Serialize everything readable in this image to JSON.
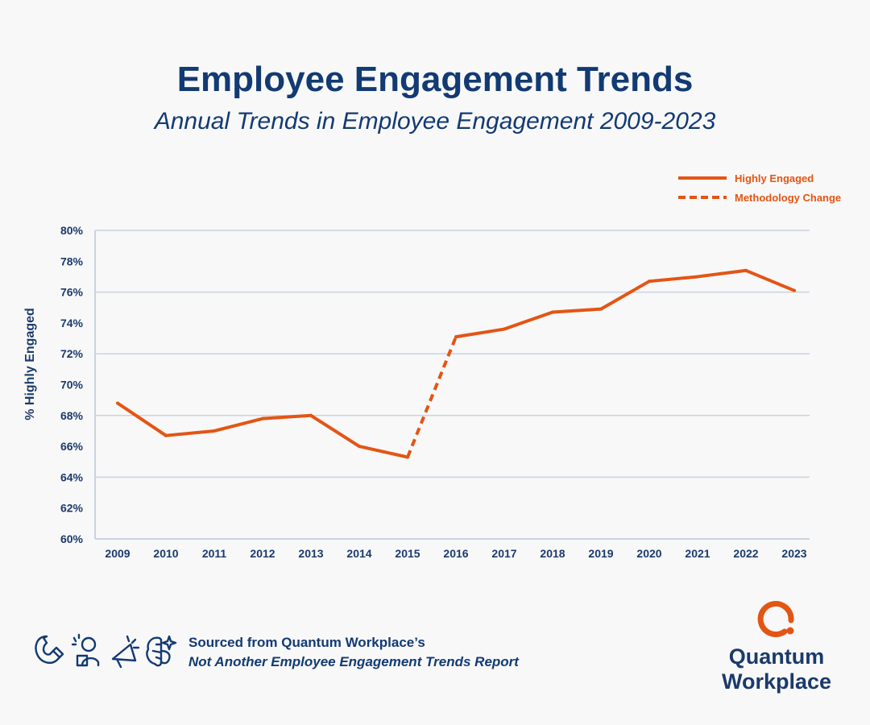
{
  "title": "Employee Engagement Trends",
  "subtitle": "Annual Trends in Employee Engagement 2009-2023",
  "colors": {
    "line": "#e35514",
    "text": "#123a73",
    "grid": "#c9d3e0",
    "background": "#f8f8f8"
  },
  "chart_data": {
    "type": "line",
    "title": "Employee Engagement Trends",
    "subtitle": "Annual Trends in Employee Engagement 2009-2023",
    "xlabel": "",
    "ylabel": "% Highly Engaged",
    "x": [
      "2009",
      "2010",
      "2011",
      "2012",
      "2013",
      "2014",
      "2015",
      "2016",
      "2017",
      "2018",
      "2019",
      "2020",
      "2021",
      "2022",
      "2023"
    ],
    "series": [
      {
        "name": "Highly Engaged",
        "values": [
          68.8,
          66.7,
          67.0,
          67.8,
          68.0,
          66.0,
          65.3,
          73.1,
          73.6,
          74.7,
          74.9,
          76.7,
          77.0,
          77.4,
          76.1
        ],
        "style": "solid",
        "dashed_segment": [
          "2015",
          "2016"
        ]
      }
    ],
    "legend": [
      {
        "label": "Highly Engaged",
        "style": "solid"
      },
      {
        "label": "Methodology Change",
        "style": "dashed"
      }
    ],
    "legend_placement": "top-right",
    "ylim": [
      60,
      80
    ],
    "yticks": [
      60,
      62,
      64,
      66,
      68,
      70,
      72,
      74,
      76,
      78,
      80
    ],
    "ytick_labels": [
      "60%",
      "62%",
      "64%",
      "66%",
      "68%",
      "70%",
      "72%",
      "74%",
      "76%",
      "78%",
      "80%"
    ],
    "gridlines": [
      64,
      68,
      72,
      76,
      80
    ],
    "grid": true
  },
  "footer": {
    "line1": "Sourced from Quantum Workplace’s",
    "line2": "Not Another Employee Engagement Trends Report",
    "icons": [
      "magnet-icon",
      "people-icon",
      "megaphone-icon",
      "brain-icon"
    ]
  },
  "logo": {
    "line1": "Quantum",
    "line2": "Workplace"
  }
}
